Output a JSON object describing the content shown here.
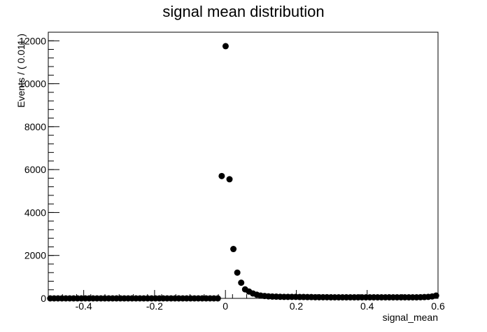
{
  "chart_data": {
    "type": "scatter",
    "title": "signal mean distribution",
    "xlabel": "signal_mean",
    "ylabel": "Events / ( 0.011 )",
    "xlim": [
      -0.5,
      0.6
    ],
    "ylim": [
      0,
      12400
    ],
    "xticks": [
      -0.4,
      -0.2,
      0,
      0.2,
      0.4,
      0.6
    ],
    "xtick_labels": [
      "-0.4",
      "-0.2",
      "0",
      "0.2",
      "0.4",
      "0.6"
    ],
    "yticks": [
      0,
      2000,
      4000,
      6000,
      8000,
      10000,
      12000
    ],
    "ytick_labels": [
      "0",
      "2000",
      "4000",
      "6000",
      "8000",
      "10000",
      "12000"
    ],
    "marker_color": "#000000",
    "grid": false,
    "legend": "none",
    "series": [
      {
        "x": [
          -0.4945,
          -0.4835,
          -0.4725,
          -0.4615,
          -0.4505,
          -0.4395,
          -0.4285,
          -0.4175,
          -0.4065,
          -0.3955,
          -0.3845,
          -0.3735,
          -0.3625,
          -0.3515,
          -0.3405,
          -0.3295,
          -0.3185,
          -0.3075,
          -0.2965,
          -0.2855,
          -0.2745,
          -0.2635,
          -0.2525,
          -0.2415,
          -0.2305,
          -0.2195,
          -0.2085,
          -0.1975,
          -0.1865,
          -0.1755,
          -0.1645,
          -0.1535,
          -0.1425,
          -0.1315,
          -0.1205,
          -0.1095,
          -0.0985,
          -0.0875,
          -0.0765,
          -0.0655,
          -0.0545,
          -0.0435,
          -0.0325,
          -0.0215,
          -0.0105,
          0.0005,
          0.0115,
          0.0225,
          0.0335,
          0.0445,
          0.0555,
          0.0665,
          0.0775,
          0.0885,
          0.0995,
          0.1105,
          0.1215,
          0.1325,
          0.1435,
          0.1545,
          0.1655,
          0.1765,
          0.1875,
          0.1985,
          0.2095,
          0.2205,
          0.2315,
          0.2425,
          0.2535,
          0.2645,
          0.2755,
          0.2865,
          0.2975,
          0.3085,
          0.3195,
          0.3305,
          0.3415,
          0.3525,
          0.3635,
          0.3745,
          0.3855,
          0.3965,
          0.4075,
          0.4185,
          0.4295,
          0.4405,
          0.4515,
          0.4625,
          0.4735,
          0.4845,
          0.4955,
          0.5065,
          0.5175,
          0.5285,
          0.5395,
          0.5505,
          0.5615,
          0.5725,
          0.5835,
          0.5945
        ],
        "y": [
          0,
          0,
          0,
          0,
          0,
          0,
          0,
          0,
          0,
          0,
          0,
          0,
          0,
          0,
          0,
          0,
          0,
          0,
          0,
          0,
          0,
          0,
          0,
          0,
          0,
          0,
          0,
          0,
          0,
          0,
          0,
          0,
          0,
          0,
          0,
          0,
          0,
          0,
          0,
          0,
          0,
          0,
          0,
          0,
          5700,
          11750,
          5550,
          2300,
          1200,
          730,
          420,
          320,
          230,
          170,
          130,
          110,
          95,
          85,
          80,
          75,
          70,
          70,
          70,
          70,
          65,
          65,
          60,
          60,
          55,
          55,
          55,
          55,
          50,
          50,
          50,
          50,
          50,
          50,
          50,
          50,
          50,
          50,
          50,
          50,
          50,
          50,
          50,
          50,
          50,
          50,
          50,
          50,
          50,
          50,
          50,
          55,
          60,
          70,
          90,
          130
        ]
      }
    ]
  }
}
